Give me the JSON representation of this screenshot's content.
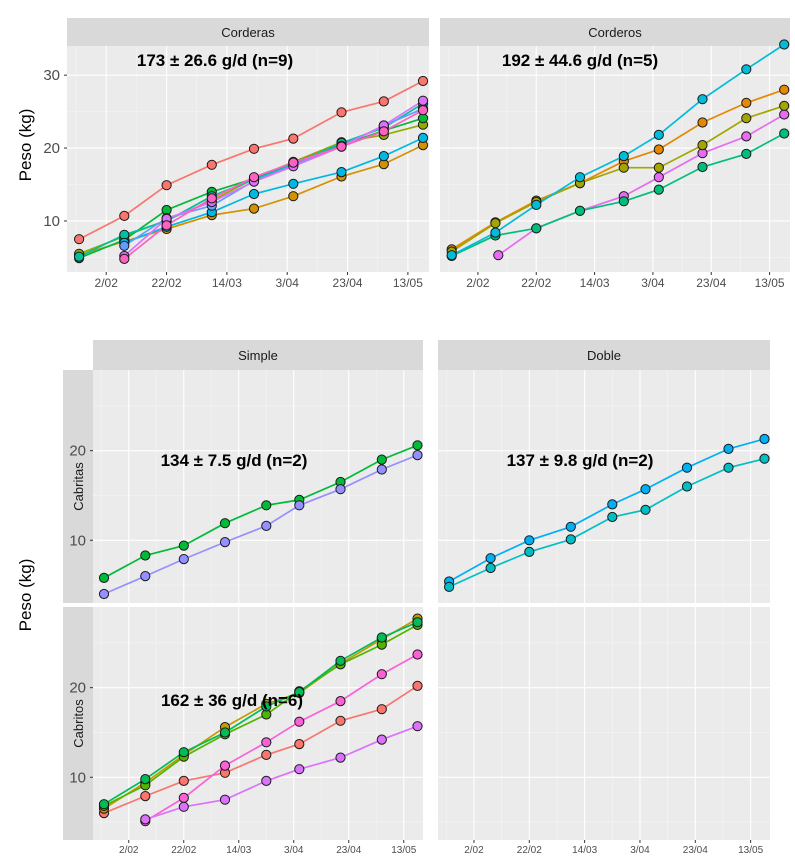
{
  "chart_data": [
    {
      "type": "line",
      "strip": "Corderas",
      "ylabel": "Peso (kg)",
      "xlabel": "",
      "annotation": "173 ± 26.6 g/d (n=9)",
      "xticks": [
        "2/02",
        "22/02",
        "14/03",
        "3/04",
        "23/04",
        "13/05"
      ],
      "yticks": [
        10,
        20,
        30
      ],
      "xlim": [
        "2023-01-20",
        "2023-05-20"
      ],
      "ylim": [
        3,
        34
      ],
      "series": [
        {
          "color": "#f8766d",
          "x": [
            "2023-01-24",
            "2023-02-08",
            "2023-02-22",
            "2023-03-09",
            "2023-03-23",
            "2023-04-05",
            "2023-04-21",
            "2023-05-05",
            "2023-05-18"
          ],
          "y": [
            7.5,
            10.7,
            14.9,
            17.7,
            19.9,
            21.3,
            24.9,
            26.4,
            29.2
          ]
        },
        {
          "color": "#d39200",
          "x": [
            "2023-01-24",
            "2023-02-08",
            "2023-02-22",
            "2023-03-09",
            "2023-03-23",
            "2023-04-05",
            "2023-04-21",
            "2023-05-05",
            "2023-05-18"
          ],
          "y": [
            5.3,
            7.2,
            8.9,
            10.8,
            11.7,
            13.4,
            16.1,
            17.8,
            20.4
          ]
        },
        {
          "color": "#93aa00",
          "x": [
            "2023-01-24",
            "2023-02-08",
            "2023-02-22",
            "2023-03-09",
            "2023-03-23",
            "2023-04-05",
            "2023-04-21",
            "2023-05-05",
            "2023-05-18"
          ],
          "y": [
            5.5,
            7.9,
            10.1,
            12.8,
            15.8,
            18.1,
            20.8,
            21.8,
            23.2
          ]
        },
        {
          "color": "#00ba38",
          "x": [
            "2023-01-24",
            "2023-02-08",
            "2023-02-22",
            "2023-03-09",
            "2023-03-23",
            "2023-04-05",
            "2023-04-21",
            "2023-05-05",
            "2023-05-18"
          ],
          "y": [
            4.9,
            7.4,
            11.5,
            14.0,
            15.8,
            18.0,
            20.4,
            22.4,
            24.1
          ]
        },
        {
          "color": "#00c19f",
          "x": [
            "2023-01-24",
            "2023-02-08",
            "2023-02-22",
            "2023-03-09",
            "2023-03-23",
            "2023-04-05",
            "2023-04-21",
            "2023-05-05",
            "2023-05-18"
          ],
          "y": [
            5.1,
            8.1,
            10.0,
            13.4,
            15.7,
            17.8,
            20.7,
            22.8,
            26.1
          ]
        },
        {
          "color": "#00b9e3",
          "x": [
            "2023-02-08",
            "2023-02-22",
            "2023-03-09",
            "2023-03-23",
            "2023-04-05",
            "2023-04-21",
            "2023-05-05",
            "2023-05-18"
          ],
          "y": [
            7.0,
            9.2,
            11.2,
            13.7,
            15.1,
            16.7,
            18.9,
            21.4
          ]
        },
        {
          "color": "#619cff",
          "x": [
            "2023-02-08",
            "2023-02-22",
            "2023-03-09",
            "2023-03-23",
            "2023-04-05",
            "2023-04-21",
            "2023-05-05",
            "2023-05-18"
          ],
          "y": [
            6.6,
            10.4,
            12.1,
            15.5,
            17.6,
            20.3,
            23.1,
            25.4
          ]
        },
        {
          "color": "#db72fb",
          "x": [
            "2023-02-08",
            "2023-02-22",
            "2023-03-09",
            "2023-03-23",
            "2023-04-05",
            "2023-04-21",
            "2023-05-05",
            "2023-05-18"
          ],
          "y": [
            5.2,
            10.3,
            12.6,
            15.4,
            17.5,
            20.2,
            23.1,
            26.5
          ]
        },
        {
          "color": "#ff61c3",
          "x": [
            "2023-02-08",
            "2023-02-22",
            "2023-03-09",
            "2023-03-23",
            "2023-04-05",
            "2023-04-21",
            "2023-05-05",
            "2023-05-18"
          ],
          "y": [
            4.8,
            9.4,
            13.1,
            16.0,
            18.0,
            20.2,
            22.3,
            25.2
          ]
        }
      ]
    },
    {
      "type": "line",
      "strip": "Corderos",
      "xlabel": "",
      "ylabel": "",
      "annotation": "192 ± 44.6 g/d (n=5)",
      "xticks": [
        "2/02",
        "22/02",
        "14/03",
        "3/04",
        "23/04",
        "13/05"
      ],
      "yticks": [
        10,
        20,
        30
      ],
      "xlim": [
        "2023-01-20",
        "2023-05-20"
      ],
      "ylim": [
        3,
        34
      ],
      "series": [
        {
          "color": "#e76bf3",
          "x": [
            "2023-02-09",
            "2023-02-22",
            "2023-03-09",
            "2023-03-24",
            "2023-04-05",
            "2023-04-20",
            "2023-05-05",
            "2023-05-18"
          ],
          "y": [
            5.3,
            9.0,
            11.4,
            13.4,
            16.0,
            19.3,
            21.6,
            24.6
          ]
        },
        {
          "color": "#e58700",
          "x": [
            "2023-01-24",
            "2023-02-08",
            "2023-02-22",
            "2023-03-09",
            "2023-03-24",
            "2023-04-05",
            "2023-04-20",
            "2023-05-05",
            "2023-05-18"
          ],
          "y": [
            6.1,
            9.8,
            12.8,
            15.2,
            18.2,
            19.8,
            23.5,
            26.2,
            28.0
          ]
        },
        {
          "color": "#a3a500",
          "x": [
            "2023-01-24",
            "2023-02-08",
            "2023-02-22",
            "2023-03-09",
            "2023-03-24",
            "2023-04-05",
            "2023-04-20",
            "2023-05-05",
            "2023-05-18"
          ],
          "y": [
            5.8,
            9.7,
            12.6,
            15.2,
            17.3,
            17.3,
            20.4,
            24.1,
            25.8
          ]
        },
        {
          "color": "#00bf7d",
          "x": [
            "2023-01-24",
            "2023-02-08",
            "2023-02-22",
            "2023-03-09",
            "2023-03-24",
            "2023-04-05",
            "2023-04-20",
            "2023-05-05",
            "2023-05-18"
          ],
          "y": [
            5.2,
            8.0,
            9.0,
            11.4,
            12.7,
            14.3,
            17.4,
            19.2,
            22.0
          ]
        },
        {
          "color": "#00bcd8",
          "x": [
            "2023-01-24",
            "2023-02-08",
            "2023-02-22",
            "2023-03-09",
            "2023-03-24",
            "2023-04-05",
            "2023-04-20",
            "2023-05-05",
            "2023-05-18"
          ],
          "y": [
            5.3,
            8.4,
            12.2,
            16.0,
            18.9,
            21.8,
            26.7,
            30.8,
            34.2
          ]
        }
      ]
    },
    {
      "type": "line",
      "strip": "Simple",
      "row_strip": "Cabritas",
      "xlabel": "",
      "ylabel": "Peso (kg)",
      "annotation": "134 ± 7.5 g/d (n=2)",
      "xticks": [],
      "yticks": [
        10,
        20
      ],
      "xlim": [
        "2023-01-20",
        "2023-05-20"
      ],
      "ylim": [
        3,
        29
      ],
      "series": [
        {
          "color": "#00ba38",
          "x": [
            "2023-01-24",
            "2023-02-08",
            "2023-02-22",
            "2023-03-09",
            "2023-03-24",
            "2023-04-05",
            "2023-04-20",
            "2023-05-05",
            "2023-05-18"
          ],
          "y": [
            5.8,
            8.3,
            9.4,
            11.9,
            13.9,
            14.5,
            16.5,
            19.0,
            20.6
          ]
        },
        {
          "color": "#9590ff",
          "x": [
            "2023-01-24",
            "2023-02-08",
            "2023-02-22",
            "2023-03-09",
            "2023-03-24",
            "2023-04-05",
            "2023-04-20",
            "2023-05-05",
            "2023-05-18"
          ],
          "y": [
            4.0,
            6.0,
            7.9,
            9.8,
            11.6,
            13.9,
            15.7,
            17.9,
            19.5
          ]
        }
      ]
    },
    {
      "type": "line",
      "strip": "Doble",
      "row_strip": "Cabritas",
      "xlabel": "",
      "ylabel": "",
      "annotation": "137 ± 9.8 g/d (n=2)",
      "xticks": [],
      "yticks": [],
      "xlim": [
        "2023-01-20",
        "2023-05-20"
      ],
      "ylim": [
        3,
        29
      ],
      "series": [
        {
          "color": "#00b0f6",
          "x": [
            "2023-01-24",
            "2023-02-08",
            "2023-02-22",
            "2023-03-09",
            "2023-03-24",
            "2023-04-05",
            "2023-04-20",
            "2023-05-05",
            "2023-05-18"
          ],
          "y": [
            5.4,
            8.0,
            10.0,
            11.5,
            14.0,
            15.7,
            18.1,
            20.2,
            21.3
          ]
        },
        {
          "color": "#00bfc4",
          "x": [
            "2023-01-24",
            "2023-02-08",
            "2023-02-22",
            "2023-03-09",
            "2023-03-24",
            "2023-04-05",
            "2023-04-20",
            "2023-05-05",
            "2023-05-18"
          ],
          "y": [
            4.8,
            6.9,
            8.7,
            10.1,
            12.6,
            13.4,
            16.0,
            18.1,
            19.1
          ]
        }
      ]
    },
    {
      "type": "line",
      "strip": "",
      "row_strip": "Cabritos",
      "xlabel": "",
      "ylabel": "",
      "annotation": "162 ± 36 g/d (n=6)",
      "xticks": [
        "2/02",
        "22/02",
        "14/03",
        "3/04",
        "23/04",
        "13/05"
      ],
      "yticks": [
        10,
        20
      ],
      "xlim": [
        "2023-01-20",
        "2023-05-20"
      ],
      "ylim": [
        3,
        29
      ],
      "series": [
        {
          "color": "#f8766d",
          "x": [
            "2023-01-24",
            "2023-02-08",
            "2023-02-22",
            "2023-03-09",
            "2023-03-24",
            "2023-04-05",
            "2023-04-20",
            "2023-05-05",
            "2023-05-18"
          ],
          "y": [
            6.0,
            7.9,
            9.6,
            10.5,
            12.5,
            13.7,
            16.3,
            17.6,
            20.2
          ]
        },
        {
          "color": "#c49a00",
          "x": [
            "2023-01-24",
            "2023-02-08",
            "2023-02-22",
            "2023-03-09",
            "2023-03-24",
            "2023-04-05",
            "2023-04-20",
            "2023-05-05",
            "2023-05-18"
          ],
          "y": [
            6.5,
            9.4,
            12.5,
            15.6,
            18.2,
            19.4,
            22.7,
            25.4,
            27.7
          ]
        },
        {
          "color": "#53b400",
          "x": [
            "2023-01-24",
            "2023-02-08",
            "2023-02-22",
            "2023-03-09",
            "2023-03-24",
            "2023-04-05",
            "2023-04-20",
            "2023-05-05",
            "2023-05-18"
          ],
          "y": [
            6.8,
            9.1,
            12.3,
            14.8,
            17.0,
            19.6,
            22.6,
            24.8,
            27.0
          ]
        },
        {
          "color": "#00bc56",
          "x": [
            "2023-01-24",
            "2023-02-08",
            "2023-02-22",
            "2023-03-09",
            "2023-03-24",
            "2023-04-05",
            "2023-04-20",
            "2023-05-05",
            "2023-05-18"
          ],
          "y": [
            7.0,
            9.8,
            12.8,
            15.0,
            17.9,
            19.5,
            23.0,
            25.6,
            27.3
          ]
        },
        {
          "color": "#fb61d7",
          "x": [
            "2023-02-08",
            "2023-02-22",
            "2023-03-09",
            "2023-03-24",
            "2023-04-05",
            "2023-04-20",
            "2023-05-05",
            "2023-05-18"
          ],
          "y": [
            5.1,
            7.7,
            11.3,
            13.9,
            16.2,
            18.5,
            21.5,
            23.7
          ]
        },
        {
          "color": "#db72fb",
          "x": [
            "2023-02-08",
            "2023-02-22",
            "2023-03-09",
            "2023-03-24",
            "2023-04-05",
            "2023-04-20",
            "2023-05-05",
            "2023-05-18"
          ],
          "y": [
            5.3,
            6.7,
            7.5,
            9.6,
            10.9,
            12.2,
            14.2,
            15.7
          ]
        }
      ]
    }
  ]
}
